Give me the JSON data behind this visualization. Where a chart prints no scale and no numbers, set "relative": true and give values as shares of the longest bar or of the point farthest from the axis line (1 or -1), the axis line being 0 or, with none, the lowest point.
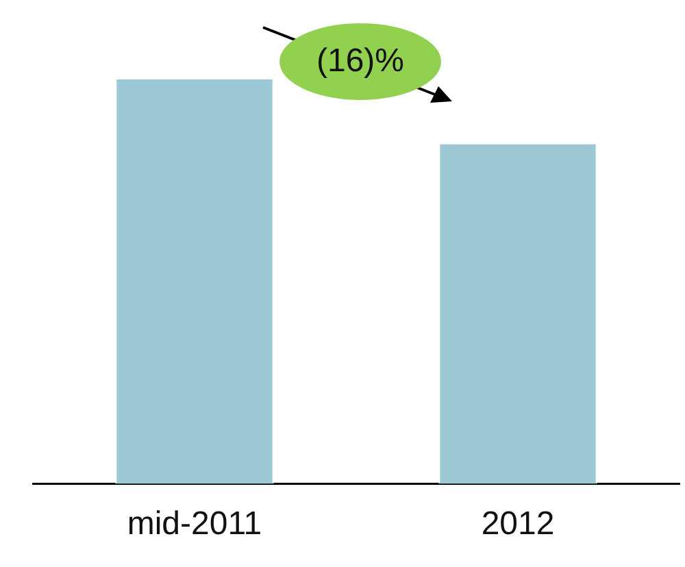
{
  "chart_data": {
    "type": "bar",
    "relative": true,
    "categories": [
      "mid-2011",
      "2012"
    ],
    "values": [
      1,
      0.84
    ],
    "color": "#9cc8d6",
    "grid": false,
    "legend": false,
    "annotations": [
      "(16)%"
    ]
  }
}
